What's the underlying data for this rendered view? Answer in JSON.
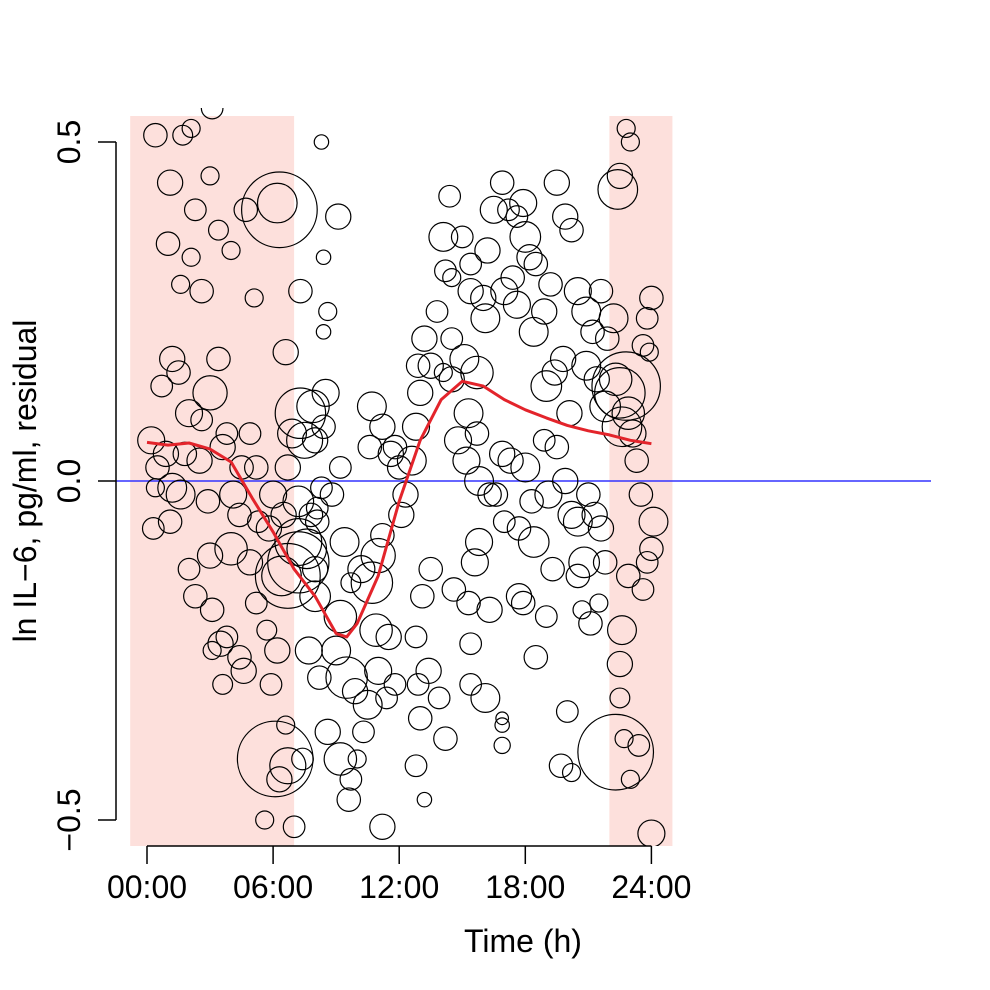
{
  "chart_data": {
    "type": "scatter",
    "title": "",
    "xlabel": "Time (h)",
    "ylabel": "ln IL−6, pg/ml, residual",
    "xlim": [
      -0.8,
      25.0
    ],
    "ylim": [
      -0.54,
      0.54
    ],
    "x_ticks": [
      {
        "value": 0,
        "label": "00:00"
      },
      {
        "value": 6,
        "label": "06:00"
      },
      {
        "value": 12,
        "label": "12:00"
      },
      {
        "value": 18,
        "label": "18:00"
      },
      {
        "value": 24,
        "label": "24:00"
      }
    ],
    "y_ticks": [
      {
        "value": -0.5,
        "label": "−0.5"
      },
      {
        "value": 0.0,
        "label": "0.0"
      },
      {
        "value": 0.5,
        "label": "0.5"
      }
    ],
    "grid": false,
    "legend": "none",
    "reference_line": {
      "y": 0.0,
      "color": "#3333ff"
    },
    "shaded_periods": [
      {
        "from": -0.8,
        "to": 7.0,
        "color": "#fde0dc"
      },
      {
        "from": 22.0,
        "to": 25.0,
        "color": "#fde0dc"
      }
    ],
    "fit_line": {
      "color": "#e3242b",
      "points": [
        [
          0,
          0.057
        ],
        [
          1,
          0.053
        ],
        [
          2,
          0.056
        ],
        [
          3,
          0.047
        ],
        [
          4,
          0.028
        ],
        [
          5,
          -0.025
        ],
        [
          6,
          -0.075
        ],
        [
          7,
          -0.13
        ],
        [
          8,
          -0.17
        ],
        [
          9,
          -0.225
        ],
        [
          9.5,
          -0.23
        ],
        [
          10,
          -0.21
        ],
        [
          11,
          -0.14
        ],
        [
          12,
          -0.03
        ],
        [
          13,
          0.06
        ],
        [
          14,
          0.12
        ],
        [
          15,
          0.147
        ],
        [
          16,
          0.14
        ],
        [
          17,
          0.12
        ],
        [
          18,
          0.105
        ],
        [
          19,
          0.093
        ],
        [
          20,
          0.082
        ],
        [
          21,
          0.074
        ],
        [
          22,
          0.068
        ],
        [
          23,
          0.06
        ],
        [
          24,
          0.055
        ]
      ]
    },
    "marker": "open-circle",
    "size_unit": "relative weight (1 = smallest circle)",
    "points": [
      [
        0.4,
        0.51,
        1.3
      ],
      [
        1.1,
        0.44,
        1.4
      ],
      [
        1.0,
        0.35,
        1.3
      ],
      [
        1.7,
        0.51,
        1.1
      ],
      [
        2.1,
        0.52,
        1.0
      ],
      [
        2.3,
        0.4,
        1.2
      ],
      [
        3.0,
        0.45,
        1.0
      ],
      [
        3.1,
        0.55,
        1.2
      ],
      [
        2.6,
        0.28,
        1.3
      ],
      [
        1.6,
        0.29,
        1.0
      ],
      [
        2.1,
        0.33,
        1.0
      ],
      [
        3.4,
        0.37,
        1.1
      ],
      [
        4.0,
        0.34,
        1.0
      ],
      [
        4.7,
        0.4,
        1.3
      ],
      [
        6.2,
        0.41,
        2.2
      ],
      [
        6.3,
        0.4,
        4.2
      ],
      [
        8.3,
        0.5,
        0.8
      ],
      [
        8.4,
        0.33,
        0.8
      ],
      [
        9.1,
        0.39,
        1.4
      ],
      [
        8.4,
        0.22,
        0.8
      ],
      [
        8.6,
        0.25,
        1.0
      ],
      [
        5.1,
        0.27,
        1.0
      ],
      [
        6.6,
        0.19,
        1.4
      ],
      [
        7.3,
        0.28,
        1.3
      ],
      [
        0.2,
        0.06,
        1.5
      ],
      [
        0.5,
        0.02,
        1.3
      ],
      [
        0.7,
        0.14,
        1.2
      ],
      [
        1.2,
        0.18,
        1.4
      ],
      [
        1.5,
        0.16,
        1.3
      ],
      [
        2.0,
        0.1,
        1.5
      ],
      [
        2.6,
        0.09,
        1.2
      ],
      [
        3.0,
        0.13,
        1.9
      ],
      [
        3.4,
        0.18,
        1.3
      ],
      [
        3.8,
        0.07,
        1.2
      ],
      [
        1.8,
        0.04,
        1.3
      ],
      [
        0.3,
        -0.07,
        1.2
      ],
      [
        0.4,
        -0.01,
        1.0
      ],
      [
        1.1,
        -0.06,
        1.3
      ],
      [
        1.6,
        -0.02,
        1.6
      ],
      [
        2.0,
        -0.13,
        1.2
      ],
      [
        2.3,
        -0.17,
        1.3
      ],
      [
        3.0,
        -0.11,
        1.4
      ],
      [
        3.1,
        -0.19,
        1.3
      ],
      [
        3.5,
        -0.24,
        1.4
      ],
      [
        4.0,
        -0.1,
        1.8
      ],
      [
        4.4,
        -0.05,
        1.3
      ],
      [
        4.9,
        -0.12,
        1.4
      ],
      [
        5.2,
        -0.18,
        1.2
      ],
      [
        4.6,
        -0.28,
        1.4
      ],
      [
        3.8,
        -0.23,
        1.2
      ],
      [
        3.1,
        -0.25,
        1.0
      ],
      [
        3.6,
        -0.3,
        1.1
      ],
      [
        4.4,
        -0.26,
        1.3
      ],
      [
        5.7,
        -0.22,
        1.1
      ],
      [
        5.9,
        -0.3,
        1.2
      ],
      [
        6.2,
        -0.25,
        1.4
      ],
      [
        6.6,
        -0.36,
        1.0
      ],
      [
        6.4,
        -0.14,
        2.2
      ],
      [
        6.7,
        -0.14,
        3.6
      ],
      [
        7.2,
        -0.12,
        3.4
      ],
      [
        7.2,
        -0.09,
        2.6
      ],
      [
        7.6,
        -0.1,
        2.2
      ],
      [
        7.8,
        -0.05,
        1.3
      ],
      [
        8.0,
        -0.13,
        1.4
      ],
      [
        8.0,
        -0.17,
        1.7
      ],
      [
        7.7,
        -0.25,
        1.5
      ],
      [
        7.4,
        -0.41,
        1.2
      ],
      [
        6.1,
        -0.41,
        4.2
      ],
      [
        6.3,
        -0.44,
        1.4
      ],
      [
        6.7,
        -0.42,
        2.0
      ],
      [
        7.0,
        -0.51,
        1.2
      ],
      [
        5.6,
        -0.5,
        1.0
      ],
      [
        7.2,
        -0.03,
        1.7
      ],
      [
        8.1,
        -0.06,
        1.3
      ],
      [
        8.3,
        -0.01,
        1.2
      ],
      [
        8.4,
        0.08,
        1.3
      ],
      [
        8.5,
        0.13,
        1.5
      ],
      [
        8.8,
        -0.02,
        1.3
      ],
      [
        9.2,
        0.02,
        1.2
      ],
      [
        9.4,
        -0.09,
        1.6
      ],
      [
        9.2,
        -0.2,
        1.8
      ],
      [
        9.0,
        -0.25,
        1.6
      ],
      [
        8.2,
        -0.29,
        1.3
      ],
      [
        8.6,
        -0.37,
        1.4
      ],
      [
        9.2,
        -0.41,
        1.8
      ],
      [
        9.7,
        -0.44,
        1.2
      ],
      [
        9.6,
        -0.47,
        1.3
      ],
      [
        10.0,
        -0.41,
        1.0
      ],
      [
        10.3,
        -0.37,
        1.2
      ],
      [
        10.5,
        -0.33,
        1.6
      ],
      [
        9.5,
        -0.29,
        2.3
      ],
      [
        9.9,
        -0.31,
        1.4
      ],
      [
        9.7,
        -0.15,
        1.1
      ],
      [
        10.2,
        -0.13,
        1.5
      ],
      [
        10.7,
        -0.15,
        2.3
      ],
      [
        11.0,
        -0.11,
        1.9
      ],
      [
        11.2,
        -0.08,
        1.3
      ],
      [
        10.9,
        -0.22,
        1.8
      ],
      [
        11.5,
        -0.23,
        1.4
      ],
      [
        11.8,
        -0.3,
        1.2
      ],
      [
        11.0,
        -0.28,
        1.5
      ],
      [
        11.2,
        -0.51,
        1.4
      ],
      [
        11.4,
        -0.32,
        1.2
      ],
      [
        10.6,
        0.05,
        1.3
      ],
      [
        10.7,
        0.11,
        1.6
      ],
      [
        11.2,
        0.08,
        1.4
      ],
      [
        11.6,
        0.04,
        1.4
      ],
      [
        11.8,
        0.05,
        1.3
      ],
      [
        12.0,
        0.02,
        1.3
      ],
      [
        12.1,
        -0.05,
        1.4
      ],
      [
        12.3,
        -0.02,
        1.4
      ],
      [
        12.6,
        0.03,
        1.6
      ],
      [
        12.8,
        0.08,
        1.5
      ],
      [
        12.9,
        0.17,
        1.3
      ],
      [
        13.2,
        0.21,
        1.4
      ],
      [
        13.5,
        0.17,
        1.4
      ],
      [
        13.0,
        0.13,
        1.4
      ],
      [
        13.8,
        0.25,
        1.2
      ],
      [
        14.2,
        0.31,
        1.2
      ],
      [
        14.5,
        0.21,
        1.2
      ],
      [
        14.1,
        0.16,
        1.0
      ],
      [
        14.5,
        0.15,
        1.4
      ],
      [
        15.1,
        0.18,
        1.6
      ],
      [
        15.3,
        0.1,
        1.6
      ],
      [
        15.7,
        0.07,
        1.3
      ],
      [
        15.7,
        0.16,
        1.8
      ],
      [
        15.4,
        0.28,
        1.4
      ],
      [
        16.0,
        0.27,
        1.4
      ],
      [
        16.1,
        0.24,
        1.6
      ],
      [
        15.0,
        0.36,
        1.2
      ],
      [
        14.4,
        0.42,
        1.2
      ],
      [
        14.1,
        0.36,
        1.6
      ],
      [
        14.5,
        0.3,
        1.0
      ],
      [
        15.4,
        0.32,
        1.2
      ],
      [
        16.2,
        0.34,
        1.4
      ],
      [
        16.5,
        0.4,
        1.5
      ],
      [
        16.9,
        0.44,
        1.3
      ],
      [
        17.2,
        0.4,
        1.2
      ],
      [
        17.6,
        0.39,
        1.2
      ],
      [
        17.9,
        0.41,
        1.5
      ],
      [
        18.2,
        0.33,
        1.4
      ],
      [
        18.4,
        0.22,
        1.6
      ],
      [
        18.9,
        0.25,
        1.4
      ],
      [
        19.2,
        0.29,
        1.3
      ],
      [
        19.5,
        0.44,
        1.4
      ],
      [
        19.9,
        0.39,
        1.4
      ],
      [
        20.2,
        0.37,
        1.3
      ],
      [
        20.5,
        0.28,
        1.5
      ],
      [
        20.9,
        0.25,
        1.6
      ],
      [
        21.2,
        0.22,
        1.3
      ],
      [
        21.6,
        0.28,
        1.3
      ],
      [
        21.9,
        0.21,
        1.3
      ],
      [
        22.2,
        0.24,
        1.6
      ],
      [
        22.4,
        0.43,
        2.2
      ],
      [
        22.5,
        0.45,
        1.4
      ],
      [
        22.8,
        0.52,
        1.0
      ],
      [
        23.0,
        0.5,
        1.0
      ],
      [
        22.3,
        0.15,
        1.8
      ],
      [
        22.5,
        0.13,
        2.8
      ],
      [
        22.8,
        0.14,
        3.8
      ],
      [
        22.6,
        0.08,
        2.2
      ],
      [
        22.9,
        0.1,
        1.8
      ],
      [
        23.1,
        0.07,
        1.5
      ],
      [
        23.3,
        0.03,
        1.3
      ],
      [
        23.5,
        -0.02,
        1.3
      ],
      [
        23.6,
        0.2,
        1.2
      ],
      [
        23.8,
        0.24,
        1.2
      ],
      [
        24.0,
        0.27,
        1.3
      ],
      [
        23.9,
        0.19,
        1.0
      ],
      [
        24.1,
        -0.06,
        1.6
      ],
      [
        24.0,
        -0.1,
        1.3
      ],
      [
        23.8,
        -0.12,
        1.2
      ],
      [
        23.6,
        -0.16,
        1.2
      ],
      [
        22.9,
        -0.14,
        1.3
      ],
      [
        22.6,
        -0.22,
        1.6
      ],
      [
        22.5,
        -0.27,
        1.4
      ],
      [
        22.5,
        -0.32,
        1.1
      ],
      [
        22.7,
        -0.38,
        1.0
      ],
      [
        22.3,
        -0.4,
        4.2
      ],
      [
        23.0,
        -0.44,
        1.0
      ],
      [
        23.4,
        -0.39,
        1.2
      ],
      [
        24.0,
        -0.52,
        1.5
      ],
      [
        16.9,
        0.04,
        1.4
      ],
      [
        16.6,
        -0.02,
        1.3
      ],
      [
        17.0,
        -0.06,
        1.2
      ],
      [
        17.3,
        0.03,
        1.4
      ],
      [
        17.7,
        -0.07,
        1.3
      ],
      [
        18.0,
        0.02,
        1.6
      ],
      [
        18.3,
        -0.03,
        1.3
      ],
      [
        18.4,
        -0.09,
        1.7
      ],
      [
        19.1,
        -0.02,
        1.5
      ],
      [
        19.5,
        0.05,
        1.3
      ],
      [
        19.9,
        0.0,
        1.4
      ],
      [
        20.2,
        -0.05,
        1.5
      ],
      [
        20.5,
        -0.06,
        1.6
      ],
      [
        20.8,
        -0.12,
        1.7
      ],
      [
        21.0,
        -0.02,
        1.3
      ],
      [
        21.3,
        -0.05,
        1.4
      ],
      [
        21.6,
        -0.07,
        1.4
      ],
      [
        21.8,
        -0.12,
        1.3
      ],
      [
        19.3,
        -0.13,
        1.3
      ],
      [
        19.0,
        -0.2,
        1.2
      ],
      [
        18.5,
        -0.26,
        1.3
      ],
      [
        17.9,
        -0.18,
        1.3
      ],
      [
        17.7,
        -0.17,
        1.4
      ],
      [
        16.3,
        -0.19,
        1.4
      ],
      [
        15.8,
        -0.09,
        1.5
      ],
      [
        15.6,
        -0.12,
        1.5
      ],
      [
        15.3,
        -0.18,
        1.3
      ],
      [
        14.6,
        -0.16,
        1.3
      ],
      [
        15.4,
        -0.24,
        1.2
      ],
      [
        15.4,
        -0.3,
        1.2
      ],
      [
        16.1,
        -0.32,
        1.6
      ],
      [
        16.9,
        -0.35,
        0.7
      ],
      [
        16.9,
        -0.36,
        0.8
      ],
      [
        16.9,
        -0.39,
        0.9
      ],
      [
        13.5,
        -0.13,
        1.3
      ],
      [
        13.1,
        -0.17,
        1.3
      ],
      [
        12.8,
        -0.23,
        1.2
      ],
      [
        12.9,
        -0.3,
        1.2
      ],
      [
        13.4,
        -0.28,
        1.4
      ],
      [
        13.9,
        -0.32,
        1.2
      ],
      [
        14.2,
        -0.38,
        1.3
      ],
      [
        12.8,
        -0.42,
        1.2
      ],
      [
        13.2,
        -0.47,
        0.8
      ],
      [
        13.0,
        -0.35,
        1.3
      ],
      [
        19.7,
        -0.42,
        1.3
      ],
      [
        20.2,
        -0.43,
        1.0
      ],
      [
        20.0,
        -0.34,
        1.2
      ],
      [
        21.1,
        -0.21,
        1.3
      ],
      [
        21.5,
        -0.18,
        1.0
      ],
      [
        20.5,
        -0.14,
        1.3
      ],
      [
        20.7,
        -0.19,
        1.0
      ],
      [
        18.9,
        0.06,
        1.2
      ],
      [
        19.0,
        0.14,
        1.7
      ],
      [
        19.8,
        0.18,
        1.4
      ],
      [
        20.1,
        0.1,
        1.4
      ],
      [
        20.9,
        0.17,
        1.6
      ],
      [
        21.4,
        0.15,
        1.4
      ],
      [
        21.8,
        0.11,
        1.7
      ],
      [
        17.0,
        0.28,
        1.5
      ],
      [
        17.4,
        0.3,
        1.3
      ],
      [
        17.6,
        0.26,
        1.5
      ],
      [
        18.0,
        0.36,
        1.7
      ],
      [
        18.5,
        0.32,
        1.3
      ],
      [
        19.4,
        0.16,
        1.4
      ],
      [
        14.8,
        0.06,
        1.5
      ],
      [
        15.2,
        0.03,
        1.5
      ],
      [
        15.8,
        0.0,
        1.6
      ],
      [
        16.3,
        -0.02,
        1.3
      ],
      [
        5.2,
        0.02,
        1.3
      ],
      [
        5.3,
        -0.06,
        1.2
      ],
      [
        5.8,
        -0.07,
        1.4
      ],
      [
        6.0,
        -0.02,
        1.5
      ],
      [
        6.5,
        -0.05,
        1.4
      ],
      [
        6.7,
        0.02,
        1.4
      ],
      [
        6.9,
        0.07,
        1.6
      ],
      [
        7.3,
        0.1,
        2.8
      ],
      [
        7.5,
        0.06,
        2.0
      ],
      [
        7.9,
        0.11,
        1.8
      ],
      [
        8.0,
        0.06,
        1.4
      ],
      [
        8.1,
        -0.04,
        1.2
      ],
      [
        0.9,
        0.04,
        1.4
      ],
      [
        1.2,
        -0.01,
        1.6
      ],
      [
        2.5,
        0.03,
        1.4
      ],
      [
        2.9,
        -0.03,
        1.3
      ],
      [
        3.6,
        0.05,
        1.4
      ],
      [
        4.1,
        -0.02,
        1.5
      ],
      [
        4.5,
        0.02,
        1.3
      ],
      [
        4.9,
        0.07,
        1.2
      ]
    ]
  }
}
